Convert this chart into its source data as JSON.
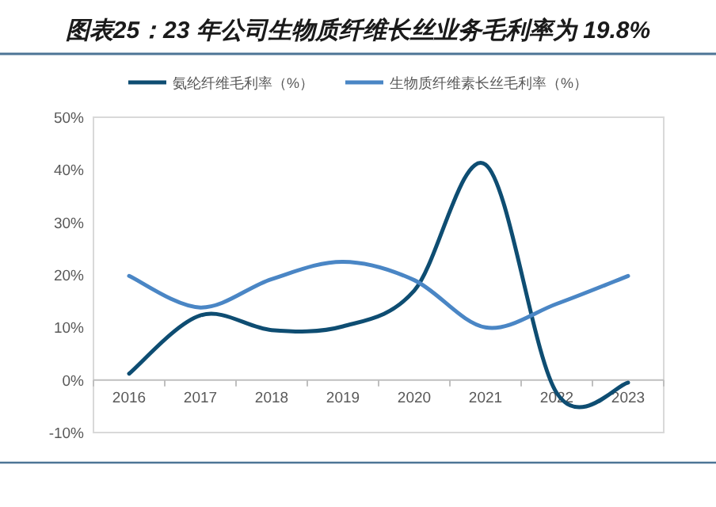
{
  "chart_data": {
    "type": "line",
    "title": "图表25：23 年公司生物质纤维长丝业务毛利率为 19.8%",
    "categories": [
      "2016",
      "2017",
      "2018",
      "2019",
      "2020",
      "2021",
      "2022",
      "2023"
    ],
    "series": [
      {
        "name": "氨纶纤维毛利率（%）",
        "color": "#0e4d72",
        "values": [
          1.2,
          12.3,
          9.5,
          10.2,
          17,
          41,
          -2.5,
          -0.5
        ]
      },
      {
        "name": "生物质纤维素长丝毛利率（%）",
        "color": "#4a86c5",
        "values": [
          19.8,
          13.8,
          19.2,
          22.5,
          19,
          10,
          14.5,
          19.8
        ]
      }
    ],
    "ylim": [
      -10,
      50
    ],
    "yticks": [
      {
        "value": -10,
        "label": "-10%"
      },
      {
        "value": 0,
        "label": "0%"
      },
      {
        "value": 10,
        "label": "10%"
      },
      {
        "value": 20,
        "label": "20%"
      },
      {
        "value": 30,
        "label": "30%"
      },
      {
        "value": 40,
        "label": "40%"
      },
      {
        "value": 50,
        "label": "50%"
      }
    ],
    "grid": false,
    "legend": "top",
    "marker": "none",
    "line_style": "solid"
  }
}
